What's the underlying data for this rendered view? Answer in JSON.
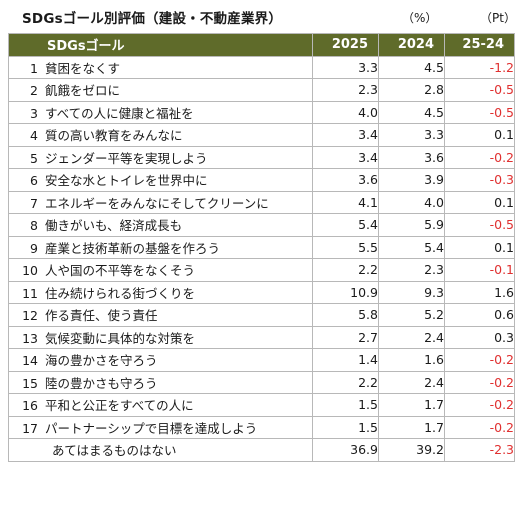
{
  "header": {
    "title": "SDGsゴール別評価（建設・不動産業界）",
    "unit_percent": "（%）",
    "unit_points": "（Pt）"
  },
  "table": {
    "columns": [
      "SDGsゴール",
      "2025",
      "2024",
      "25-24"
    ],
    "rows": [
      {
        "no": "1",
        "goal": "貧困をなくす",
        "y2025": "3.3",
        "y2024": "4.5",
        "diff": "-1.2",
        "negative": true
      },
      {
        "no": "2",
        "goal": "飢餓をゼロに",
        "y2025": "2.3",
        "y2024": "2.8",
        "diff": "-0.5",
        "negative": true
      },
      {
        "no": "3",
        "goal": "すべての人に健康と福祉を",
        "y2025": "4.0",
        "y2024": "4.5",
        "diff": "-0.5",
        "negative": true
      },
      {
        "no": "4",
        "goal": "質の高い教育をみんなに",
        "y2025": "3.4",
        "y2024": "3.3",
        "diff": "0.1",
        "negative": false
      },
      {
        "no": "5",
        "goal": "ジェンダー平等を実現しよう",
        "y2025": "3.4",
        "y2024": "3.6",
        "diff": "-0.2",
        "negative": true
      },
      {
        "no": "6",
        "goal": "安全な水とトイレを世界中に",
        "y2025": "3.6",
        "y2024": "3.9",
        "diff": "-0.3",
        "negative": true
      },
      {
        "no": "7",
        "goal": "エネルギーをみんなにそしてクリーンに",
        "y2025": "4.1",
        "y2024": "4.0",
        "diff": "0.1",
        "negative": false
      },
      {
        "no": "8",
        "goal": "働きがいも、経済成長も",
        "y2025": "5.4",
        "y2024": "5.9",
        "diff": "-0.5",
        "negative": true
      },
      {
        "no": "9",
        "goal": "産業と技術革新の基盤を作ろう",
        "y2025": "5.5",
        "y2024": "5.4",
        "diff": "0.1",
        "negative": false
      },
      {
        "no": "10",
        "goal": "人や国の不平等をなくそう",
        "y2025": "2.2",
        "y2024": "2.3",
        "diff": "-0.1",
        "negative": true
      },
      {
        "no": "11",
        "goal": "住み続けられる街づくりを",
        "y2025": "10.9",
        "y2024": "9.3",
        "diff": "1.6",
        "negative": false
      },
      {
        "no": "12",
        "goal": "作る責任、使う責任",
        "y2025": "5.8",
        "y2024": "5.2",
        "diff": "0.6",
        "negative": false
      },
      {
        "no": "13",
        "goal": "気候変動に具体的な対策を",
        "y2025": "2.7",
        "y2024": "2.4",
        "diff": "0.3",
        "negative": false
      },
      {
        "no": "14",
        "goal": "海の豊かさを守ろう",
        "y2025": "1.4",
        "y2024": "1.6",
        "diff": "-0.2",
        "negative": true
      },
      {
        "no": "15",
        "goal": "陸の豊かさも守ろう",
        "y2025": "2.2",
        "y2024": "2.4",
        "diff": "-0.2",
        "negative": true
      },
      {
        "no": "16",
        "goal": "平和と公正をすべての人に",
        "y2025": "1.5",
        "y2024": "1.7",
        "diff": "-0.2",
        "negative": true
      },
      {
        "no": "17",
        "goal": "パートナーシップで目標を達成しよう",
        "y2025": "1.5",
        "y2024": "1.7",
        "diff": "-0.2",
        "negative": true
      },
      {
        "no": "",
        "goal": "あてはまるものはない",
        "y2025": "36.9",
        "y2024": "39.2",
        "diff": "-2.3",
        "negative": true
      }
    ]
  },
  "colors": {
    "header_bg": "#5f6b2a",
    "header_text": "#ffffff",
    "negative_text": "#e03030"
  }
}
